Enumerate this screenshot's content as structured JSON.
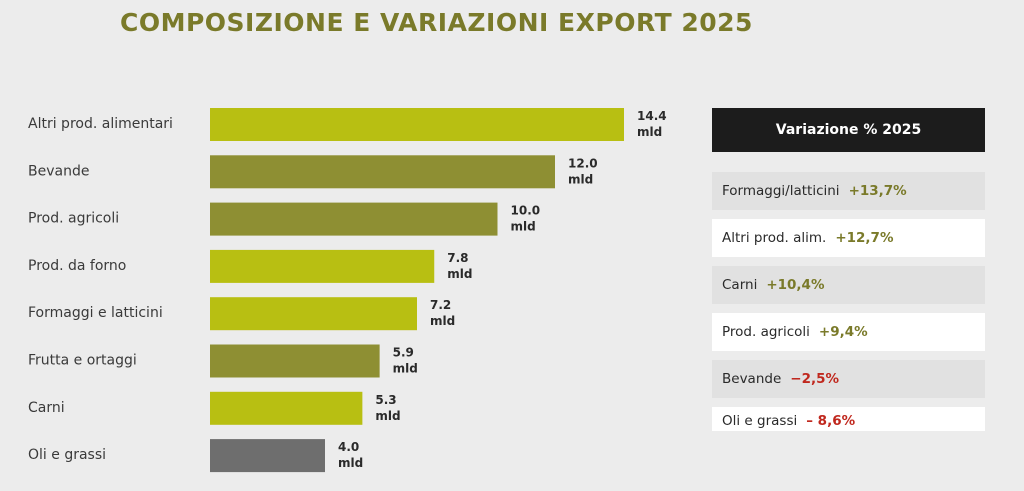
{
  "title": "COMPOSIZIONE E VARIAZIONI EXPORT 2025",
  "chart_data": {
    "type": "bar",
    "orientation": "horizontal",
    "categories": [
      "Altri prod. alimentari",
      "Bevande",
      "Prod. agricoli",
      "Prod. da forno",
      "Formaggi e latticini",
      "Frutta e ortaggi",
      "Carni",
      "Oli e grassi"
    ],
    "values": [
      14.4,
      12.0,
      10.0,
      7.8,
      7.2,
      5.9,
      5.3,
      4.0
    ],
    "value_labels": [
      "14.4",
      "12.0",
      "10.0",
      "7.8",
      "7.2",
      "5.9",
      "5.3",
      "4.0"
    ],
    "unit": "mld",
    "colors": [
      "#b8bf12",
      "#8e8f33",
      "#8e8f33",
      "#b8bf12",
      "#b8bf12",
      "#8e8f33",
      "#b8bf12",
      "#6e6e6e"
    ],
    "title": "COMPOSIZIONE E VARIAZIONI EXPORT 2025",
    "xlabel": "",
    "ylabel": "",
    "xlim": [
      0,
      14.4
    ],
    "grid": false
  },
  "variation_table": {
    "header": "Variazione % 2025",
    "rows": [
      {
        "label": "Formaggi/latticini",
        "value": "+13,7%",
        "trend": "positive"
      },
      {
        "label": "Altri prod. alim.",
        "value": "+12,7%",
        "trend": "positive"
      },
      {
        "label": "Carni",
        "value": "+10,4%",
        "trend": "positive"
      },
      {
        "label": "Prod. agricoli",
        "value": "+9,4%",
        "trend": "positive"
      },
      {
        "label": "Bevande",
        "value": "−2,5%",
        "trend": "negative"
      },
      {
        "label": "Oli e grassi",
        "value": "– 8,6%",
        "trend": "negative"
      }
    ],
    "colors": {
      "positive": "#7a7a2a",
      "negative": "#c0281e",
      "header_bg": "#1c1c1c"
    }
  }
}
